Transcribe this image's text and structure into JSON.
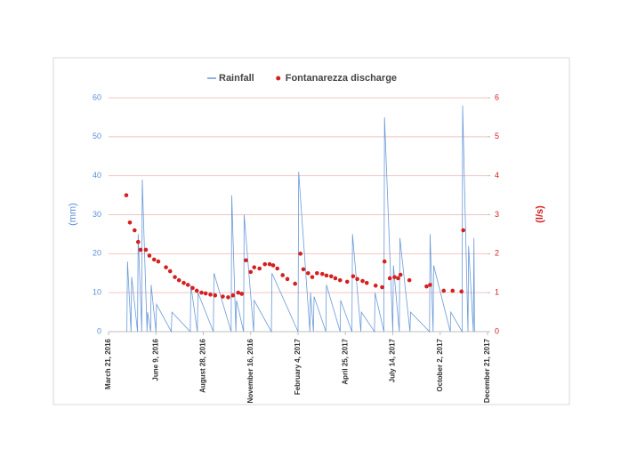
{
  "chart_data": {
    "type": "combo",
    "y_label": "(mm)",
    "y2_label": "(l/s)",
    "ylim": [
      0,
      60
    ],
    "yticks": [
      0,
      10,
      20,
      30,
      40,
      50,
      60
    ],
    "y2lim": [
      0,
      6
    ],
    "y2ticks": [
      0,
      1,
      2,
      3,
      4,
      5,
      6
    ],
    "xlim": [
      "2016-03-21",
      "2017-12-21"
    ],
    "xticks": [
      {
        "value": "2016-03-21",
        "label": "March 21, 2016"
      },
      {
        "value": "2016-06-09",
        "label": "June 9, 2016"
      },
      {
        "value": "2016-08-28",
        "label": "August 28, 2016"
      },
      {
        "value": "2016-11-16",
        "label": "November 16, 2016"
      },
      {
        "value": "2017-02-04",
        "label": "February 4, 2017"
      },
      {
        "value": "2017-04-25",
        "label": "April 25, 2017"
      },
      {
        "value": "2017-07-14",
        "label": "July 14, 2017"
      },
      {
        "value": "2017-10-02",
        "label": "October 2, 2017"
      },
      {
        "value": "2017-12-21",
        "label": "December 21, 2017"
      }
    ],
    "grid": true,
    "legend": "top",
    "series": [
      {
        "name": "Rainfall",
        "type": "line",
        "color": "#6a9ad8",
        "x": [
          "2016-04-21",
          "2016-04-22",
          "2016-04-28",
          "2016-04-29",
          "2016-05-09",
          "2016-05-10",
          "2016-05-16",
          "2016-05-17",
          "2016-05-25",
          "2016-05-26",
          "2016-05-31",
          "2016-06-01",
          "2016-06-09",
          "2016-06-10",
          "2016-07-05",
          "2016-07-06",
          "2016-08-06",
          "2016-08-07",
          "2016-08-18",
          "2016-08-19",
          "2016-09-14",
          "2016-09-15",
          "2016-10-14",
          "2016-10-15",
          "2016-10-22",
          "2016-10-23",
          "2016-11-04",
          "2016-11-05",
          "2016-11-21",
          "2016-11-22",
          "2016-12-21",
          "2016-12-22",
          "2017-02-04",
          "2017-02-05",
          "2017-02-24",
          "2017-02-25",
          "2017-03-02",
          "2017-03-03",
          "2017-03-23",
          "2017-03-24",
          "2017-04-16",
          "2017-04-17",
          "2017-05-06",
          "2017-05-07",
          "2017-05-21",
          "2017-05-22",
          "2017-06-13",
          "2017-06-14",
          "2017-06-29",
          "2017-06-30",
          "2017-07-14",
          "2017-07-15",
          "2017-07-25",
          "2017-07-26",
          "2017-08-12",
          "2017-08-13",
          "2017-09-14",
          "2017-09-15",
          "2017-09-20",
          "2017-09-21",
          "2017-10-19",
          "2017-10-20",
          "2017-11-08",
          "2017-11-09",
          "2017-11-18",
          "2017-11-19",
          "2017-11-27",
          "2017-11-28",
          "2017-11-29"
        ],
        "values": [
          0,
          18,
          0,
          14,
          0,
          25,
          0,
          39,
          0,
          5,
          0,
          12,
          0,
          7,
          0,
          5,
          0,
          12,
          0,
          10,
          0,
          15,
          0,
          35,
          0,
          8,
          0,
          30,
          0,
          8,
          0,
          15,
          0,
          41,
          0,
          10,
          0,
          9,
          0,
          12,
          0,
          8,
          0,
          25,
          0,
          5,
          0,
          10,
          0,
          55,
          0,
          17,
          0,
          24,
          0,
          5,
          0,
          25,
          0,
          17,
          0,
          5,
          0,
          58,
          0,
          22,
          0,
          24,
          0
        ]
      },
      {
        "name": "Fontanarezza discharge",
        "type": "scatter",
        "axis": "y2",
        "color": "#d42020",
        "x": [
          "2016-04-20",
          "2016-04-26",
          "2016-05-04",
          "2016-05-10",
          "2016-05-14",
          "2016-05-23",
          "2016-05-29",
          "2016-06-06",
          "2016-06-13",
          "2016-06-26",
          "2016-07-03",
          "2016-07-11",
          "2016-07-18",
          "2016-07-26",
          "2016-08-02",
          "2016-08-10",
          "2016-08-17",
          "2016-08-25",
          "2016-09-01",
          "2016-09-09",
          "2016-09-17",
          "2016-09-30",
          "2016-10-09",
          "2016-10-17",
          "2016-10-26",
          "2016-11-01",
          "2016-11-08",
          "2016-11-16",
          "2016-11-22",
          "2016-12-01",
          "2016-12-10",
          "2016-12-18",
          "2016-12-24",
          "2016-12-31",
          "2017-01-09",
          "2017-01-17",
          "2017-01-30",
          "2017-02-08",
          "2017-02-13",
          "2017-02-21",
          "2017-02-28",
          "2017-03-08",
          "2017-03-17",
          "2017-03-24",
          "2017-04-01",
          "2017-04-08",
          "2017-04-16",
          "2017-04-28",
          "2017-05-08",
          "2017-05-15",
          "2017-05-24",
          "2017-05-31",
          "2017-06-15",
          "2017-06-26",
          "2017-06-30",
          "2017-07-09",
          "2017-07-17",
          "2017-07-23",
          "2017-07-27",
          "2017-08-11",
          "2017-09-09",
          "2017-09-15",
          "2017-10-08",
          "2017-10-23",
          "2017-11-07",
          "2017-11-10"
        ],
        "values": [
          3.5,
          2.8,
          2.6,
          2.3,
          2.1,
          2.1,
          1.95,
          1.85,
          1.8,
          1.65,
          1.55,
          1.4,
          1.32,
          1.25,
          1.2,
          1.12,
          1.05,
          1.0,
          0.98,
          0.95,
          0.93,
          0.9,
          0.88,
          0.93,
          1.0,
          0.97,
          1.83,
          1.53,
          1.65,
          1.62,
          1.73,
          1.73,
          1.7,
          1.62,
          1.45,
          1.35,
          1.23,
          2.0,
          1.6,
          1.5,
          1.4,
          1.5,
          1.48,
          1.44,
          1.42,
          1.37,
          1.32,
          1.28,
          1.42,
          1.35,
          1.3,
          1.25,
          1.18,
          1.14,
          1.8,
          1.37,
          1.4,
          1.37,
          1.46,
          1.32,
          1.16,
          1.2,
          1.05,
          1.05,
          1.03,
          2.6
        ]
      }
    ]
  }
}
